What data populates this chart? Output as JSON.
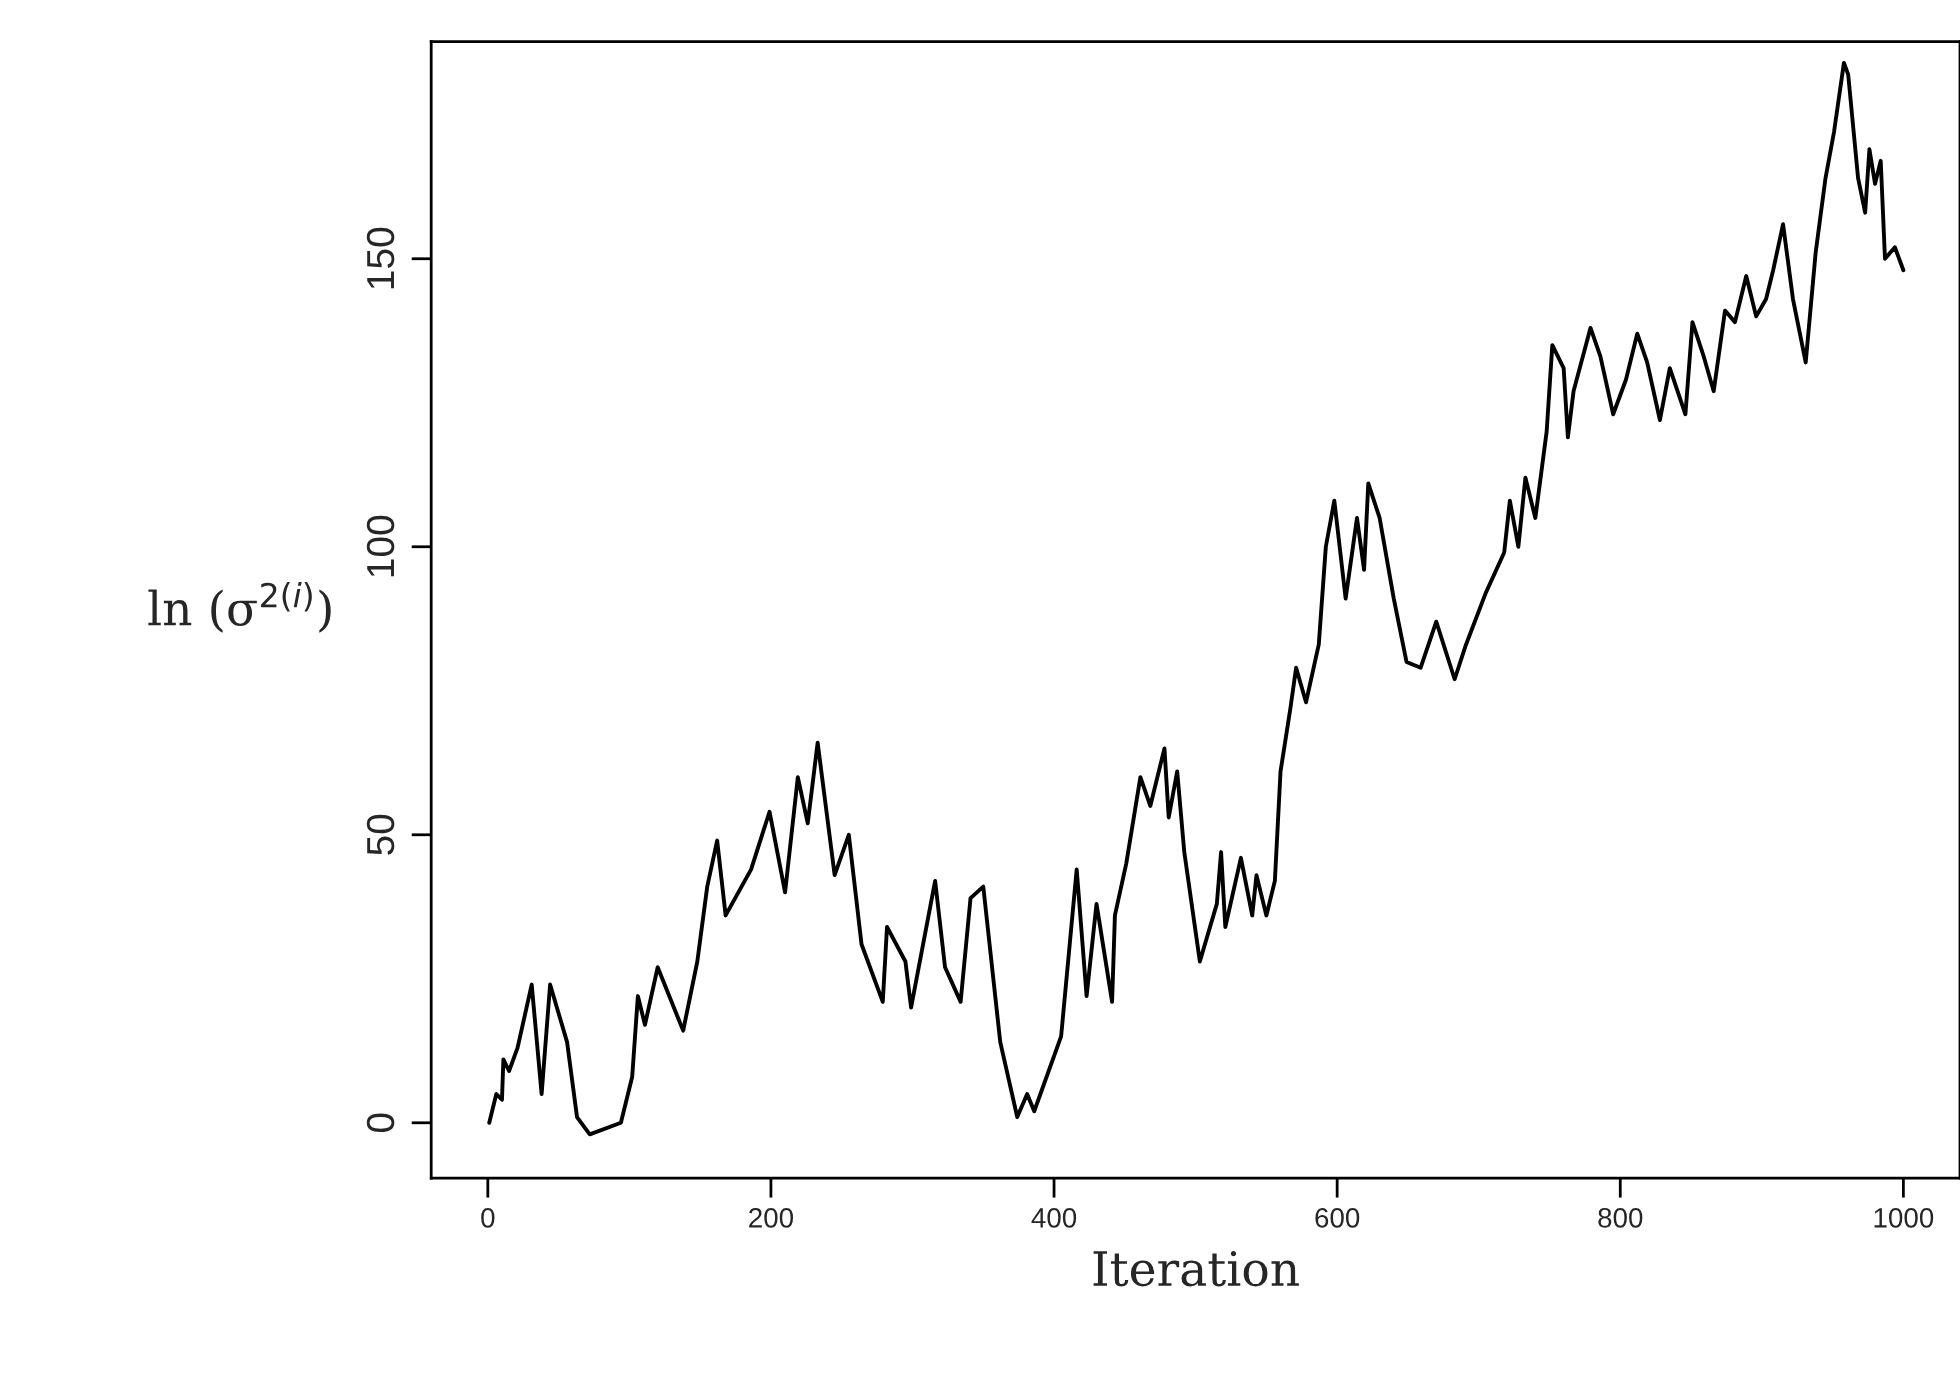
{
  "chart_data": {
    "type": "line",
    "xlabel": "Iteration",
    "ylabel": "ln (σ$^{2(i)}$)",
    "xlim": [
      -40,
      1040
    ],
    "ylim": [
      -9.6,
      187.7
    ],
    "xticks": [
      0,
      200,
      400,
      600,
      800,
      1000
    ],
    "yticks": [
      0,
      50,
      100,
      150
    ],
    "grid": false,
    "legend": false,
    "marker": "none",
    "line_style": "solid",
    "series": [
      {
        "color": "#000000",
        "x": [
          1,
          6,
          10,
          11,
          15,
          21,
          31,
          38,
          44,
          56,
          63,
          72,
          94,
          102,
          106,
          111,
          120,
          138,
          148,
          155,
          162,
          168,
          186,
          199,
          210,
          219,
          226,
          233,
          245,
          255,
          264,
          279,
          282,
          295,
          299,
          316,
          323,
          334,
          341,
          350,
          362,
          374,
          381,
          386,
          405,
          416,
          423,
          430,
          441,
          443,
          451,
          461,
          468,
          478,
          481,
          487,
          492,
          503,
          515,
          518,
          521,
          532,
          540,
          543,
          550,
          556,
          560,
          567,
          571,
          578,
          587,
          592,
          598,
          606,
          614,
          619,
          622,
          630,
          640,
          649,
          659,
          670,
          683,
          691,
          705,
          718,
          722,
          728,
          733,
          740,
          748,
          752,
          760,
          763,
          767,
          779,
          786,
          795,
          804,
          812,
          819,
          828,
          835,
          846,
          851,
          859,
          866,
          874,
          881,
          889,
          896,
          903,
          908,
          915,
          922,
          931,
          938,
          945,
          951,
          958,
          961,
          968,
          973,
          976,
          980,
          984,
          987,
          994,
          1000
        ],
        "values": [
          0,
          5,
          4,
          11,
          9,
          13,
          24,
          5,
          24,
          14,
          1,
          -2,
          0,
          8,
          22,
          17,
          27,
          16,
          28,
          41,
          49,
          36,
          44,
          54,
          40,
          60,
          52,
          66,
          43,
          50,
          31,
          21,
          34,
          28,
          20,
          42,
          27,
          21,
          39,
          41,
          14,
          1,
          5,
          2,
          15,
          44,
          22,
          38,
          21,
          36,
          45,
          60,
          55,
          65,
          53,
          61,
          47,
          28,
          38,
          47,
          34,
          46,
          36,
          43,
          36,
          42,
          61,
          72,
          79,
          73,
          83,
          100,
          108,
          91,
          105,
          96,
          111,
          105,
          91,
          80,
          79,
          87,
          77,
          83,
          92,
          99,
          108,
          100,
          112,
          105,
          120,
          135,
          131,
          119,
          127,
          138,
          133,
          123,
          129,
          137,
          132,
          122,
          131,
          123,
          139,
          133,
          127,
          141,
          139,
          147,
          140,
          143,
          148,
          156,
          143,
          132,
          151,
          164,
          172,
          184,
          182,
          164,
          158,
          169,
          163,
          167,
          150,
          152,
          148
        ]
      }
    ]
  }
}
